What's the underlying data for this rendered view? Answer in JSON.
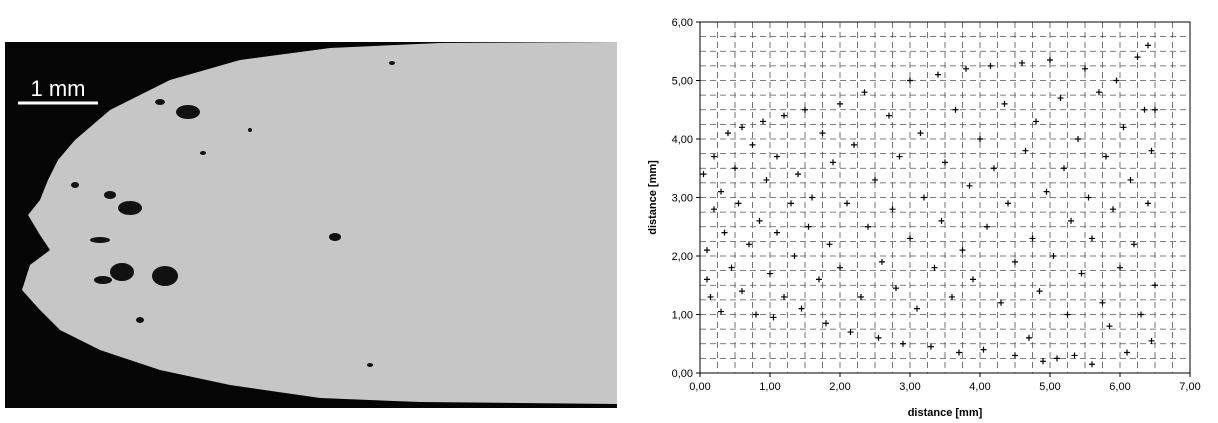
{
  "image": {
    "scale_label": "1 mm"
  },
  "chart_data": {
    "type": "scatter",
    "color": "#000000",
    "grid": true,
    "xlabel": "distance [mm]",
    "ylabel": "distance [mm]",
    "xlim": [
      0,
      7
    ],
    "ylim": [
      0,
      6
    ],
    "xticks": [
      {
        "value": 0,
        "label": "0,00"
      },
      {
        "value": 1,
        "label": "1,00"
      },
      {
        "value": 2,
        "label": "2,00"
      },
      {
        "value": 3,
        "label": "3,00"
      },
      {
        "value": 4,
        "label": "4,00"
      },
      {
        "value": 5,
        "label": "5,00"
      },
      {
        "value": 6,
        "label": "6,00"
      },
      {
        "value": 7,
        "label": "7,00"
      }
    ],
    "yticks": [
      {
        "value": 0,
        "label": "0,00"
      },
      {
        "value": 1,
        "label": "1,00"
      },
      {
        "value": 2,
        "label": "2,00"
      },
      {
        "value": 3,
        "label": "3,00"
      },
      {
        "value": 4,
        "label": "4,00"
      },
      {
        "value": 5,
        "label": "5,00"
      },
      {
        "value": 6,
        "label": "6,00"
      }
    ],
    "x_minor_grid": [
      0.25,
      0.5,
      0.75,
      1.25,
      1.5,
      1.75,
      2.25,
      2.5,
      2.75,
      3.25,
      3.5,
      3.75,
      4.25,
      4.5,
      4.75,
      5.25,
      5.5,
      5.75,
      6.25,
      6.5,
      6.75
    ],
    "y_minor_grid": [
      0.25,
      0.5,
      0.75,
      1.25,
      1.5,
      1.75,
      2.25,
      2.5,
      2.75,
      3.25,
      3.5,
      3.75,
      4.25,
      4.5,
      4.75,
      5.25,
      5.5,
      5.75
    ],
    "x": [
      0.05,
      0.1,
      0.1,
      0.15,
      0.2,
      0.2,
      0.3,
      0.3,
      0.35,
      0.4,
      0.45,
      0.5,
      0.55,
      0.6,
      0.6,
      0.7,
      0.75,
      0.8,
      0.85,
      0.9,
      0.95,
      1.0,
      1.05,
      1.1,
      1.1,
      1.2,
      1.2,
      1.3,
      1.35,
      1.4,
      1.45,
      1.5,
      1.55,
      1.6,
      1.7,
      1.75,
      1.8,
      1.85,
      1.9,
      2.0,
      2.0,
      2.1,
      2.15,
      2.2,
      2.3,
      2.35,
      2.4,
      2.5,
      2.55,
      2.6,
      2.7,
      2.75,
      2.8,
      2.85,
      2.9,
      3.0,
      3.0,
      3.1,
      3.15,
      3.2,
      3.3,
      3.35,
      3.4,
      3.45,
      3.5,
      3.6,
      3.65,
      3.7,
      3.75,
      3.8,
      3.85,
      3.9,
      4.0,
      4.05,
      4.1,
      4.15,
      4.2,
      4.3,
      4.35,
      4.4,
      4.5,
      4.5,
      4.6,
      4.65,
      4.7,
      4.75,
      4.8,
      4.85,
      4.9,
      4.95,
      5.0,
      5.05,
      5.1,
      5.15,
      5.2,
      5.25,
      5.3,
      5.35,
      5.4,
      5.45,
      5.5,
      5.55,
      5.6,
      5.6,
      5.7,
      5.75,
      5.8,
      5.85,
      5.9,
      5.95,
      6.0,
      6.05,
      6.1,
      6.15,
      6.2,
      6.25,
      6.3,
      6.35,
      6.4,
      6.4,
      6.45,
      6.45,
      6.5,
      6.5
    ],
    "values": [
      3.4,
      2.1,
      1.6,
      1.3,
      2.8,
      3.7,
      1.05,
      3.1,
      2.4,
      4.1,
      1.8,
      3.5,
      2.9,
      4.2,
      1.4,
      2.2,
      3.9,
      1.0,
      2.6,
      4.3,
      3.3,
      1.7,
      0.95,
      2.4,
      3.7,
      4.4,
      1.3,
      2.9,
      2.0,
      3.4,
      1.1,
      4.5,
      2.5,
      3.0,
      1.6,
      4.1,
      0.85,
      2.2,
      3.6,
      4.6,
      1.8,
      2.9,
      0.7,
      3.9,
      1.3,
      4.8,
      2.5,
      3.3,
      0.6,
      1.9,
      4.4,
      2.8,
      1.45,
      3.7,
      0.5,
      5.0,
      2.3,
      1.1,
      4.1,
      3.0,
      0.45,
      1.8,
      5.1,
      2.6,
      3.6,
      1.3,
      4.5,
      0.35,
      2.1,
      5.2,
      3.2,
      1.6,
      4.0,
      0.4,
      2.5,
      5.25,
      3.5,
      1.2,
      4.6,
      2.9,
      0.3,
      1.9,
      5.3,
      3.8,
      0.6,
      2.3,
      4.3,
      1.4,
      0.2,
      3.1,
      5.35,
      2.0,
      0.25,
      4.7,
      3.5,
      1.0,
      2.6,
      0.3,
      4.0,
      1.7,
      5.2,
      3.0,
      0.15,
      2.3,
      4.8,
      1.2,
      3.7,
      0.8,
      2.8,
      5.0,
      1.8,
      4.2,
      0.35,
      3.3,
      2.2,
      5.4,
      1.0,
      4.5,
      2.9,
      5.6,
      0.55,
      3.8,
      1.5,
      4.5
    ]
  }
}
